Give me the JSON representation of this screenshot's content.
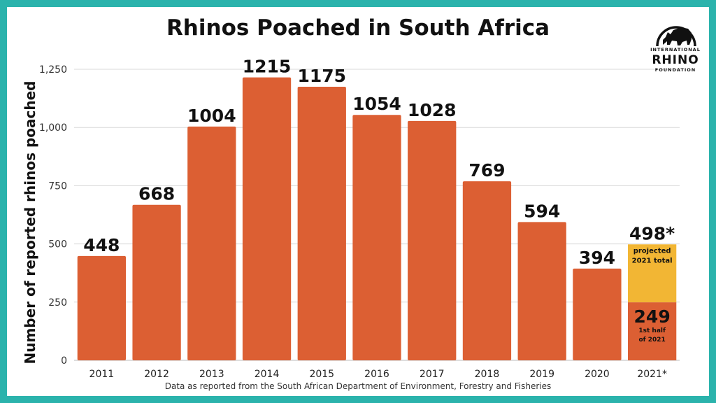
{
  "logo": {
    "line1": "INTERNATIONAL",
    "line2": "RHINO",
    "line3": "FOUNDATION"
  },
  "chart_data": {
    "type": "bar",
    "title": "Rhinos Poached in South Africa",
    "ylabel": "Number of reported rhinos poached",
    "xlabel": "",
    "source": "Data as reported from the South African Department of Environment, Forestry and Fisheries",
    "ylim": [
      0,
      1250
    ],
    "yticks": [
      0,
      250,
      500,
      750,
      1000,
      1250
    ],
    "ytick_labels": [
      "0",
      "250",
      "500",
      "750",
      "1,000",
      "1,250"
    ],
    "grid": true,
    "categories": [
      "2011",
      "2012",
      "2013",
      "2014",
      "2015",
      "2016",
      "2017",
      "2018",
      "2019",
      "2020",
      "2021*"
    ],
    "values": [
      448,
      668,
      1004,
      1215,
      1175,
      1054,
      1028,
      769,
      594,
      394,
      249
    ],
    "value_labels": [
      "448",
      "668",
      "1004",
      "1215",
      "1175",
      "1054",
      "1028",
      "769",
      "594",
      "394",
      "249"
    ],
    "projection": {
      "category": "2021*",
      "total": 498,
      "total_label": "498*",
      "total_note": [
        "projected",
        "2021 total"
      ],
      "actual_note": [
        "1st half",
        "of 2021"
      ]
    },
    "colors": {
      "bar": "#dc5f33",
      "projected": "#f2b634",
      "grid": "#d9d9d9"
    }
  }
}
